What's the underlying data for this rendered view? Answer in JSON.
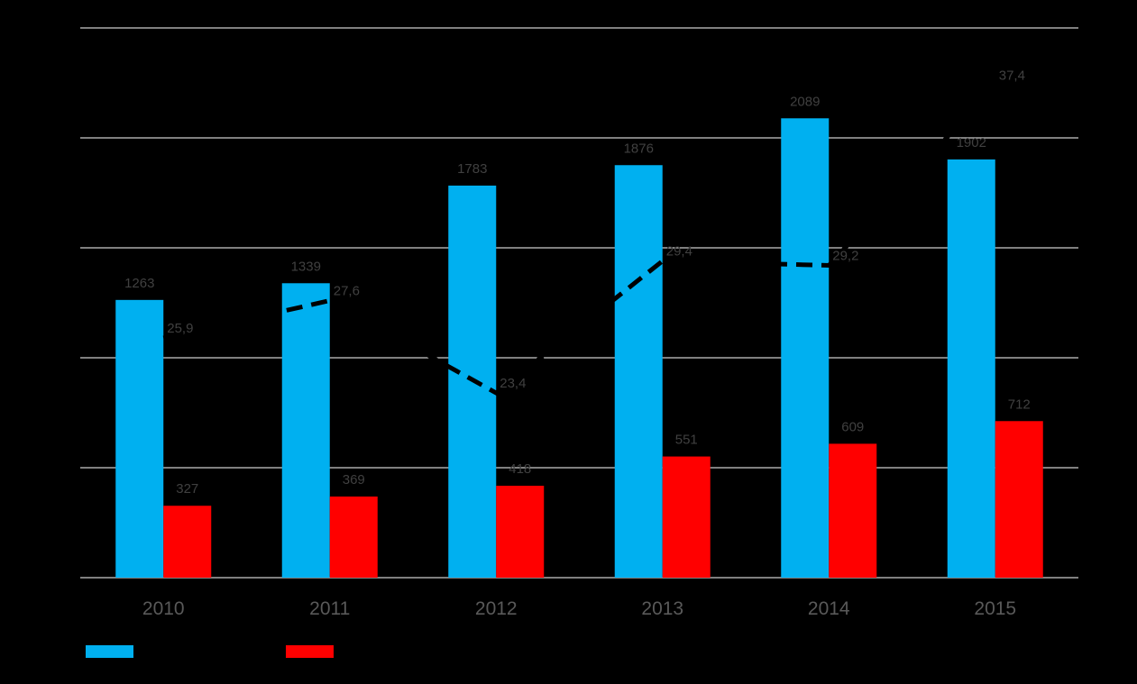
{
  "chart_data": {
    "type": "bar",
    "categories": [
      "2010",
      "2011",
      "2012",
      "2013",
      "2014",
      "2015"
    ],
    "ylim": [
      0,
      2500
    ],
    "grid": true,
    "legend_position": "bottom-left",
    "series": [
      {
        "color": "#00B0F0",
        "values": [
          1263,
          1339,
          1783,
          1876,
          2089,
          1902
        ],
        "labels": [
          "1263",
          "1339",
          "1783",
          "1876",
          "2089",
          "1902"
        ]
      },
      {
        "color": "#FF0000",
        "values": [
          327,
          369,
          418,
          551,
          609,
          712
        ],
        "labels": [
          "327",
          "369",
          "418",
          "551",
          "609",
          "712"
        ]
      }
    ],
    "line_series": {
      "type": "line",
      "style": "dashed",
      "color": "#000000",
      "values": [
        25.9,
        27.6,
        23.4,
        29.4,
        29.2,
        37.4
      ],
      "labels": [
        "25,9",
        "27,6",
        "23,4",
        "29,4",
        "29,2",
        "37,4"
      ]
    }
  },
  "colors": {
    "background": "#000000",
    "grid": "#FFFFFF",
    "axis_text": "#595959",
    "value_text": "#404040"
  }
}
